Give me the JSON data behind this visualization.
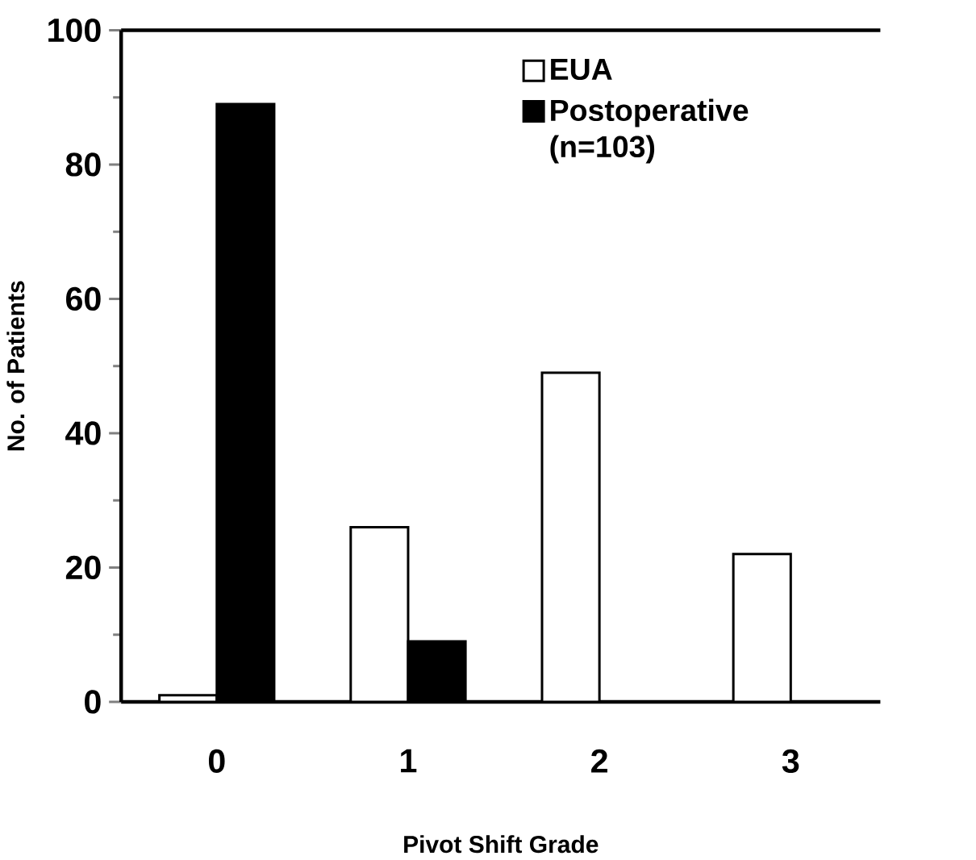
{
  "chart_data": {
    "type": "bar",
    "xlabel": "Pivot Shift Grade",
    "ylabel": "No. of Patients",
    "categories": [
      "0",
      "1",
      "2",
      "3"
    ],
    "series": [
      {
        "name": "EUA",
        "color": "#ffffff",
        "values": [
          1,
          26,
          49,
          22
        ]
      },
      {
        "name": "Postoperative (n=103)",
        "color": "#000000",
        "values": [
          89,
          9,
          0,
          0
        ]
      }
    ],
    "ylim": [
      0,
      100
    ],
    "yticks": [
      0,
      20,
      40,
      60,
      80,
      100
    ],
    "grid": false,
    "legend": "top right"
  }
}
